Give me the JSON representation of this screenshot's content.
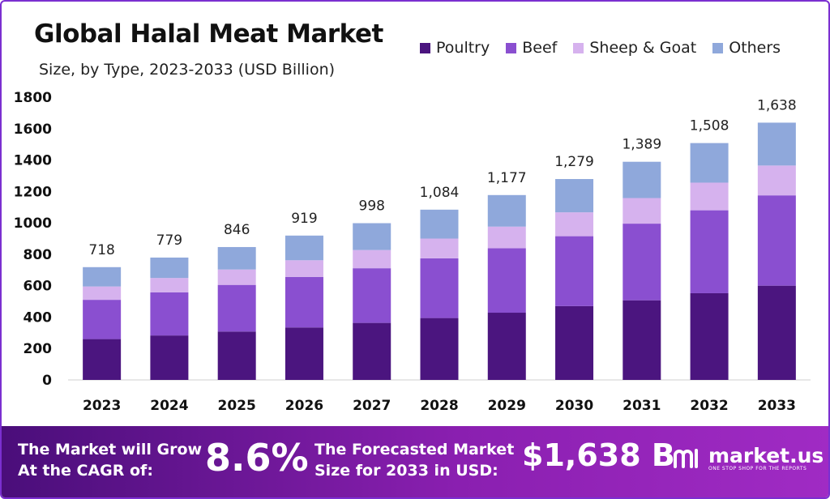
{
  "title": "Global Halal Meat Market",
  "subtitle": "Size, by Type, 2023-2033 (USD Billion)",
  "legend": [
    {
      "name": "Poultry",
      "color": "#4b157f"
    },
    {
      "name": "Beef",
      "color": "#8a4fd0"
    },
    {
      "name": "Sheep & Goat",
      "color": "#d6b2ee"
    },
    {
      "name": "Others",
      "color": "#8fa8db"
    }
  ],
  "chart_data": {
    "type": "bar",
    "stacked": true,
    "categories": [
      "2023",
      "2024",
      "2025",
      "2026",
      "2027",
      "2028",
      "2029",
      "2030",
      "2031",
      "2032",
      "2033"
    ],
    "series": [
      {
        "name": "Poultry",
        "values": [
          260,
          283,
          308,
          334,
          363,
          394,
          428,
          470,
          507,
          552,
          600
        ]
      },
      {
        "name": "Beef",
        "values": [
          250,
          275,
          297,
          322,
          348,
          380,
          410,
          445,
          488,
          528,
          575
        ]
      },
      {
        "name": "Sheep & Goat",
        "values": [
          85,
          91,
          98,
          106,
          116,
          126,
          138,
          152,
          163,
          176,
          190
        ]
      },
      {
        "name": "Others",
        "values": [
          123,
          130,
          143,
          157,
          171,
          184,
          201,
          212,
          231,
          252,
          273
        ]
      }
    ],
    "totals": [
      718,
      779,
      846,
      919,
      998,
      1084,
      1177,
      1279,
      1389,
      1508,
      1638
    ],
    "total_labels": [
      "718",
      "779",
      "846",
      "919",
      "998",
      "1,084",
      "1,177",
      "1,279",
      "1,389",
      "1,508",
      "1,638"
    ],
    "yticks": [
      0,
      200,
      400,
      600,
      800,
      1000,
      1200,
      1400,
      1600,
      1800
    ],
    "ylim": [
      0,
      1800
    ],
    "xlabel": "",
    "ylabel": "",
    "legend_position": "top-right",
    "grid": false
  },
  "banner": {
    "cagr_line1": "The Market will Grow",
    "cagr_line2": "At the CAGR of:",
    "cagr_value": "8.6%",
    "forecast_line1": "The Forecasted Market",
    "forecast_line2": "Size for 2033 in USD:",
    "forecast_value": "$1,638 B",
    "logo_text": "market.us",
    "logo_tagline": "ONE STOP SHOP FOR THE REPORTS"
  }
}
